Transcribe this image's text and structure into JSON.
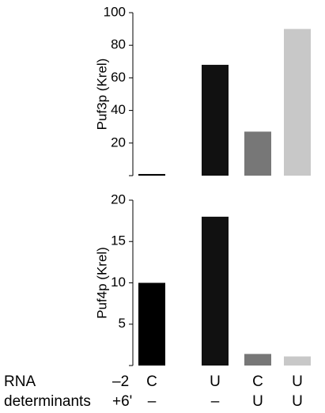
{
  "chart_data": [
    {
      "type": "bar",
      "ylabel": "Puf3p (Krel)",
      "values": [
        1,
        68,
        27,
        90
      ],
      "colors": [
        "#000000",
        "#111111",
        "#777777",
        "#c8c8c8"
      ],
      "ylim": [
        0,
        100
      ],
      "yticks": [
        20,
        40,
        60,
        80,
        100
      ]
    },
    {
      "type": "bar",
      "ylabel": "Puf4p (Krel)",
      "values": [
        10,
        18,
        1.4,
        1.1
      ],
      "colors": [
        "#000000",
        "#111111",
        "#777777",
        "#c8c8c8"
      ],
      "ylim": [
        0,
        20
      ],
      "yticks": [
        5,
        10,
        15,
        20
      ]
    }
  ],
  "rna_table": {
    "row_labels": [
      "RNA",
      "determinants"
    ],
    "positions": [
      "–2",
      "+6'"
    ],
    "rows": [
      [
        "C",
        "U",
        "C",
        "U"
      ],
      [
        "–",
        "–",
        "U",
        "U"
      ]
    ]
  }
}
